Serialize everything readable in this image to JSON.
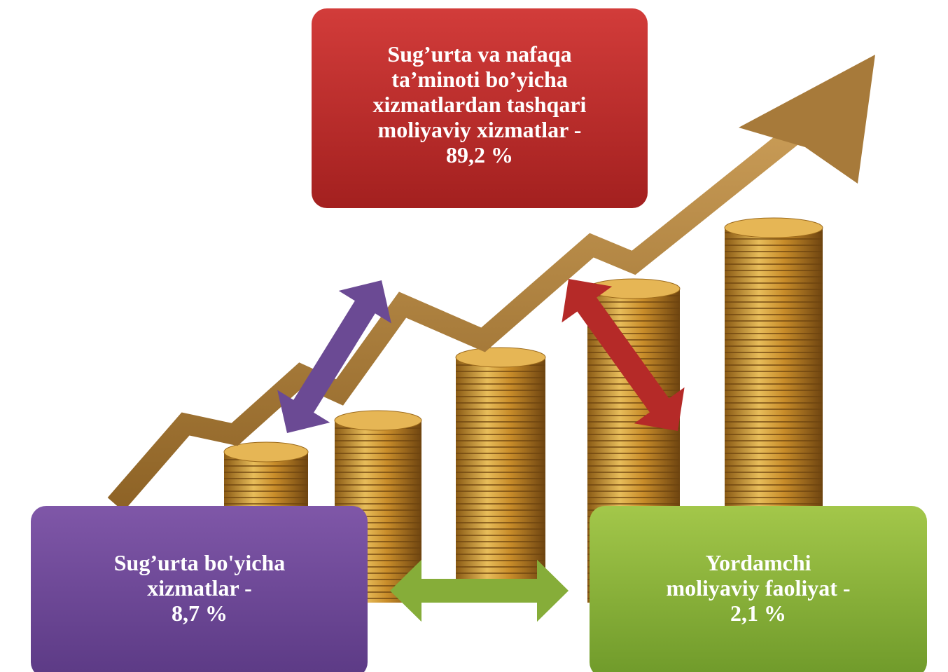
{
  "nodes": [
    {
      "lines": [
        "Sug’urta va nafaqa",
        "ta’minoti bo’yicha",
        "xizmatlardan tashqari",
        "moliyaviy xizmatlar -",
        "89,2 %"
      ]
    },
    {
      "lines": [
        "Sug’urta bo'yicha",
        "xizmatlar -",
        "8,7 %"
      ]
    },
    {
      "lines": [
        "Yordamchi",
        "moliyaviy faoliyat -",
        "2,1 %"
      ]
    }
  ]
}
